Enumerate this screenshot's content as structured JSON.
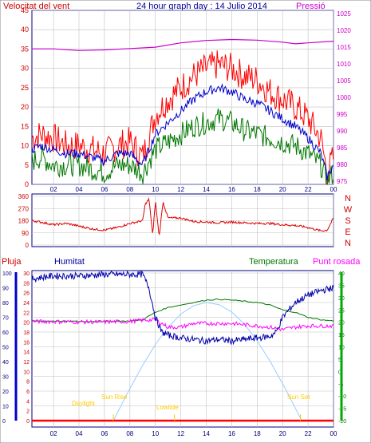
{
  "header": {
    "left_label": "Velocitat del vent",
    "title": "24 hour graph day : 14 Julio 2014",
    "right_label": "Pressió"
  },
  "panel2": {
    "compass_labels": [
      "N",
      "W",
      "S",
      "E",
      "N"
    ]
  },
  "panel3": {
    "labels": {
      "pluja": "Pluja",
      "humitat": "Humitat",
      "temperatura": "Temperatura",
      "punt_rosada": "Punt rosada"
    },
    "annotations": {
      "daylight": "Daylight",
      "sun_rise": "Sun Rise",
      "lowtide": "Lowtide",
      "sun_set": "Sun Set"
    }
  },
  "colors": {
    "wind_max": "#ff0000",
    "wind_avg": "#0000cc",
    "wind_min": "#007700",
    "pressure": "#cc00cc",
    "direction": "#dd0000",
    "humidity": "#0000aa",
    "temperature": "#007700",
    "dewpoint": "#ff00ff",
    "sun_curve": "#99ccff",
    "annotation": "#ffcc00",
    "frame": "#000080"
  },
  "chart_data": [
    {
      "type": "line",
      "name": "wind_and_pressure",
      "x_ticks": [
        "02",
        "04",
        "06",
        "08",
        "10",
        "12",
        "14",
        "16",
        "18",
        "20",
        "22",
        "00"
      ],
      "xlim_hours": [
        0.3,
        24
      ],
      "y_left_ticks": [
        0,
        5,
        10,
        15,
        20,
        25,
        30,
        35,
        40,
        45
      ],
      "y_left_range": [
        0,
        45
      ],
      "y_right_ticks": [
        975,
        980,
        985,
        990,
        995,
        1000,
        1005,
        1010,
        1015,
        1020,
        1025
      ],
      "y_right_range": [
        974,
        1026
      ],
      "grid": true,
      "series": [
        {
          "key": "wind_gust",
          "axis": "left",
          "x": [
            0.3,
            1,
            2,
            3,
            4,
            5,
            6,
            7,
            8,
            9,
            10,
            11,
            12,
            13,
            14,
            15,
            16,
            17,
            18,
            19,
            20,
            21,
            22,
            23,
            23.5,
            24
          ],
          "values": [
            12,
            13,
            12,
            10,
            10,
            9,
            8,
            10,
            11,
            7,
            18,
            22,
            25,
            28,
            30,
            31,
            30,
            28,
            27,
            24,
            22,
            20,
            17,
            12,
            3,
            7
          ]
        },
        {
          "key": "wind_avg",
          "axis": "left",
          "x": [
            0.3,
            1,
            2,
            3,
            4,
            5,
            6,
            7,
            8,
            9,
            10,
            11,
            12,
            13,
            14,
            15,
            16,
            17,
            18,
            19,
            20,
            21,
            22,
            23,
            23.5,
            24
          ],
          "values": [
            9,
            10,
            9,
            8,
            8,
            7,
            6,
            8,
            8,
            5,
            13,
            16,
            19,
            22,
            24,
            25,
            24,
            22,
            21,
            19,
            17,
            15,
            12,
            8,
            2,
            5
          ]
        },
        {
          "key": "wind_min",
          "axis": "left",
          "x": [
            0.3,
            1,
            2,
            3,
            4,
            5,
            6,
            7,
            8,
            9,
            10,
            11,
            12,
            13,
            14,
            15,
            16,
            17,
            18,
            19,
            20,
            21,
            22,
            23,
            23.5,
            24
          ],
          "values": [
            6,
            7,
            5,
            5,
            5,
            4,
            3,
            5,
            5,
            3,
            9,
            11,
            13,
            15,
            16,
            17,
            16,
            14,
            13,
            12,
            11,
            10,
            8,
            5,
            1,
            3
          ]
        },
        {
          "key": "pressure",
          "axis": "right",
          "x": [
            0.3,
            2,
            4,
            6,
            8,
            10,
            12,
            14,
            16,
            18,
            20,
            21,
            22,
            24
          ],
          "values": [
            1014.5,
            1014.5,
            1014,
            1014.2,
            1014.6,
            1015,
            1016.3,
            1017,
            1017.3,
            1017.1,
            1016.5,
            1016,
            1016.3,
            1016.8
          ]
        }
      ]
    },
    {
      "type": "line",
      "name": "wind_direction",
      "y_ticks": [
        0,
        90,
        180,
        270,
        360
      ],
      "ylim": [
        0,
        360
      ],
      "x": [
        0.3,
        1,
        2,
        3,
        4,
        5,
        6,
        7,
        8,
        9,
        9.2,
        9.5,
        9.8,
        10,
        10.3,
        10.6,
        11,
        12,
        13,
        14,
        15,
        16,
        17,
        18,
        19,
        20,
        21,
        22,
        23,
        23.5,
        24
      ],
      "values": [
        180,
        170,
        150,
        160,
        140,
        120,
        110,
        130,
        160,
        180,
        300,
        340,
        70,
        330,
        60,
        320,
        200,
        200,
        175,
        170,
        165,
        170,
        165,
        160,
        160,
        150,
        145,
        130,
        105,
        110,
        200
      ],
      "grid": true
    },
    {
      "type": "line",
      "name": "humidity_temperature",
      "y_left_ticks": [
        0,
        2,
        4,
        6,
        8,
        10,
        12,
        14,
        16,
        18,
        20,
        22,
        24,
        26,
        28,
        30
      ],
      "y_left_range": [
        0,
        30
      ],
      "y_hum_ticks": [
        0,
        10,
        20,
        30,
        40,
        50,
        60,
        70,
        80,
        90,
        100
      ],
      "y_hum_range": [
        0,
        100
      ],
      "y_right_ticks": [
        -20,
        -15,
        -10,
        -5,
        0,
        5,
        10,
        15,
        20,
        25,
        30,
        35,
        40
      ],
      "y_right_range": [
        -20,
        40
      ],
      "grid": true,
      "series": [
        {
          "key": "humidity",
          "axis": "humidity",
          "x": [
            0.3,
            1,
            2,
            4,
            6,
            8,
            9,
            9.5,
            10,
            10.5,
            11,
            12,
            13,
            14,
            15,
            16,
            17,
            18,
            19,
            19.5,
            20,
            21,
            22,
            23,
            24
          ],
          "values": [
            96,
            97,
            98,
            98,
            99,
            99,
            99,
            90,
            70,
            60,
            58,
            56,
            55,
            54,
            55,
            54,
            55,
            56,
            57,
            60,
            70,
            80,
            85,
            88,
            90
          ]
        },
        {
          "key": "temperature",
          "axis": "temp",
          "x": [
            0.3,
            2,
            4,
            6,
            8,
            9,
            10,
            11,
            12,
            13,
            14,
            15,
            16,
            17,
            18,
            19,
            20,
            21,
            22,
            23,
            24
          ],
          "values": [
            20.5,
            20.5,
            20.3,
            20.3,
            20.5,
            21,
            24,
            26,
            27,
            28,
            29,
            29.3,
            29,
            28.5,
            28,
            27,
            25,
            24,
            22,
            21,
            20.5
          ]
        },
        {
          "key": "dewpoint",
          "axis": "temp",
          "x": [
            0.3,
            2,
            4,
            6,
            8,
            9,
            10,
            11,
            12,
            13,
            14,
            15,
            16,
            17,
            18,
            19,
            20,
            21,
            22,
            23,
            24
          ],
          "values": [
            20.3,
            20.2,
            20.1,
            20.1,
            20.3,
            20.8,
            21,
            18,
            18,
            19.5,
            19.5,
            19.5,
            19.5,
            19,
            18.5,
            18,
            17,
            18,
            18.5,
            18.5,
            18.5
          ]
        },
        {
          "key": "rain",
          "axis": "rain",
          "x": [
            0.3,
            24
          ],
          "values": [
            0,
            0
          ]
        },
        {
          "key": "sun",
          "axis": "humidity",
          "x": [
            6.7,
            8,
            9,
            10,
            11,
            12,
            13,
            14,
            15,
            16,
            17,
            18,
            19,
            20,
            21,
            21.5
          ],
          "values": [
            0,
            12,
            26,
            41,
            55,
            67,
            76,
            80,
            80,
            76,
            67,
            55,
            41,
            26,
            10,
            0
          ]
        }
      ],
      "markers": [
        {
          "key": "sun_rise",
          "x": 6.7
        },
        {
          "key": "lowtide",
          "x": 11.5
        },
        {
          "key": "sun_set",
          "x": 21.4
        }
      ]
    }
  ]
}
